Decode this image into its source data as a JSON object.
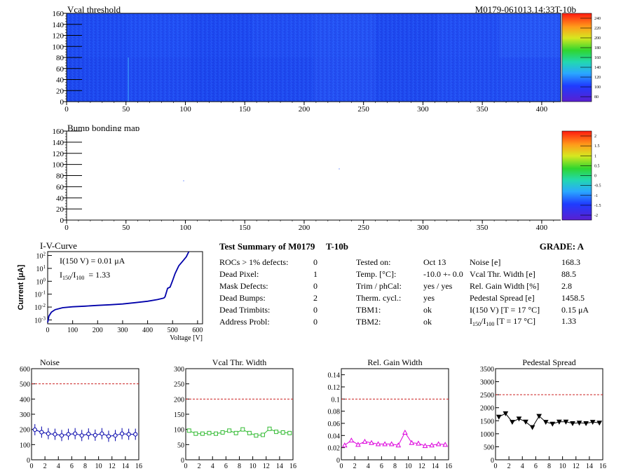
{
  "header": {
    "map1_title": "Vcal threshold",
    "module_id": "M0179-061013.14:33T-10b",
    "map2_title": "Bump bonding map"
  },
  "maps": {
    "xticks": [
      0,
      50,
      100,
      150,
      200,
      250,
      300,
      350,
      400
    ],
    "yticks": [
      0,
      20,
      40,
      60,
      80,
      100,
      120,
      140,
      160
    ],
    "xlim": [
      0,
      416
    ],
    "ylim": [
      0,
      160
    ],
    "map1_palette": {
      "labels": [
        "80",
        "100",
        "120",
        "140",
        "160",
        "180",
        "200",
        "220",
        "240"
      ],
      "range": [
        70,
        250
      ]
    },
    "map2_palette": {
      "labels": [
        "-2",
        "-1.5",
        "-1",
        "-0.5",
        "0",
        "0.5",
        "1",
        "1.5",
        "2"
      ],
      "range": [
        -2,
        2
      ]
    }
  },
  "iv": {
    "title": "I-V-Curve",
    "ylabel": "Current [μA]",
    "xlabel": "Voltage [V]",
    "i150_label": "I(150 V) = 0.01 μA",
    "ratio_label": "I",
    "ratio_sub1": "150",
    "ratio_sep": "/I",
    "ratio_sub2": "100",
    "ratio_value": "=  1.33",
    "xticks": [
      0,
      100,
      200,
      300,
      400,
      500,
      600
    ],
    "ytick_exps": [
      "-3",
      "-2",
      "-1",
      "0",
      "1",
      "2"
    ],
    "xlim": [
      0,
      620
    ],
    "ylim_log10": [
      -3.3,
      2.3
    ]
  },
  "summary": {
    "title": "Test Summary of M0179",
    "tag": "T-10b",
    "grade": "GRADE:  A",
    "defects": [
      {
        "label": "ROCs > 1% defects:",
        "value": "0"
      },
      {
        "label": "Dead Pixel:",
        "value": "1"
      },
      {
        "label": "Mask Defects:",
        "value": "0"
      },
      {
        "label": "Dead Bumps:",
        "value": "2"
      },
      {
        "label": "Dead Trimbits:",
        "value": "0"
      },
      {
        "label": "Address Probl:",
        "value": "0"
      }
    ],
    "tests": [
      {
        "label": "Tested on:",
        "value": "Oct 13"
      },
      {
        "label": "Temp. [°C]:",
        "value": "-10.0 +- 0.0"
      },
      {
        "label": "Trim / phCal:",
        "value": "yes / yes"
      },
      {
        "label": "Therm. cycl.:",
        "value": "yes"
      },
      {
        "label": "TBM1:",
        "value": "ok"
      },
      {
        "label": "TBM2:",
        "value": "ok"
      }
    ],
    "results": [
      {
        "label": "Noise [e]",
        "value": "168.3"
      },
      {
        "label": "Vcal Thr. Width [e]",
        "value": "88.5"
      },
      {
        "label": "Rel. Gain Width [%]",
        "value": "2.8"
      },
      {
        "label": "Pedestal Spread [e]",
        "value": "1458.5"
      },
      {
        "label": "I(150 V) [T = 17 °C]",
        "value": "0.15 μA"
      }
    ],
    "last_label_main": "I",
    "last_label_sub1": "150",
    "last_label_sep": "/I",
    "last_label_sub2": "100",
    "last_label_tail": "  [T = 17 °C]",
    "last_value": "1.33"
  },
  "chart_data": [
    {
      "type": "line",
      "title": "Noise",
      "xlim": [
        0,
        16
      ],
      "ylim": [
        0,
        600
      ],
      "xticks": [
        0,
        2,
        4,
        6,
        8,
        10,
        12,
        14,
        16
      ],
      "yticks": [
        0,
        100,
        200,
        300,
        400,
        500,
        600
      ],
      "threshold": 500,
      "marker": "circle-errorbar",
      "color": "#0000aa",
      "x": [
        0.5,
        1.5,
        2.5,
        3.5,
        4.5,
        5.5,
        6.5,
        7.5,
        8.5,
        9.5,
        10.5,
        11.5,
        12.5,
        13.5,
        14.5,
        15.5
      ],
      "values": [
        198,
        182,
        172,
        168,
        160,
        168,
        172,
        160,
        170,
        162,
        172,
        155,
        160,
        172,
        168,
        168
      ]
    },
    {
      "type": "line",
      "title": "Vcal Thr. Width",
      "xlim": [
        0,
        16
      ],
      "ylim": [
        0,
        300
      ],
      "xticks": [
        0,
        2,
        4,
        6,
        8,
        10,
        12,
        14,
        16
      ],
      "yticks": [
        0,
        50,
        100,
        150,
        200,
        250,
        300
      ],
      "threshold": 200,
      "marker": "square",
      "color": "#33bb33",
      "x": [
        0.5,
        1.5,
        2.5,
        3.5,
        4.5,
        5.5,
        6.5,
        7.5,
        8.5,
        9.5,
        10.5,
        11.5,
        12.5,
        13.5,
        14.5,
        15.5
      ],
      "values": [
        96,
        86,
        86,
        88,
        86,
        90,
        96,
        88,
        100,
        88,
        80,
        82,
        102,
        92,
        90,
        88
      ]
    },
    {
      "type": "line",
      "title": "Rel. Gain Width",
      "xlim": [
        0,
        16
      ],
      "ylim": [
        0,
        0.15
      ],
      "xticks": [
        0,
        2,
        4,
        6,
        8,
        10,
        12,
        14,
        16
      ],
      "yticks": [
        0,
        0.02,
        0.04,
        0.06,
        0.08,
        0.1,
        0.12,
        0.14
      ],
      "threshold": 0.1,
      "marker": "triangle-up",
      "color": "#dd00dd",
      "x": [
        0.5,
        1.5,
        2.5,
        3.5,
        4.5,
        5.5,
        6.5,
        7.5,
        8.5,
        9.5,
        10.5,
        11.5,
        12.5,
        13.5,
        14.5,
        15.5
      ],
      "values": [
        0.024,
        0.032,
        0.025,
        0.03,
        0.028,
        0.026,
        0.026,
        0.026,
        0.024,
        0.045,
        0.028,
        0.027,
        0.023,
        0.024,
        0.026,
        0.025
      ]
    },
    {
      "type": "line",
      "title": "Pedestal Spread",
      "xlim": [
        0,
        16
      ],
      "ylim": [
        0,
        3500
      ],
      "xticks": [
        0,
        2,
        4,
        6,
        8,
        10,
        12,
        14,
        16
      ],
      "yticks": [
        0,
        500,
        1000,
        1500,
        2000,
        2500,
        3000,
        3500
      ],
      "threshold": 2500,
      "marker": "triangle-down",
      "color": "#000000",
      "x": [
        0.5,
        1.5,
        2.5,
        3.5,
        4.5,
        5.5,
        6.5,
        7.5,
        8.5,
        9.5,
        10.5,
        11.5,
        12.5,
        13.5,
        14.5,
        15.5
      ],
      "values": [
        1650,
        1780,
        1450,
        1580,
        1460,
        1250,
        1680,
        1450,
        1380,
        1460,
        1460,
        1400,
        1420,
        1400,
        1450,
        1420
      ]
    }
  ]
}
